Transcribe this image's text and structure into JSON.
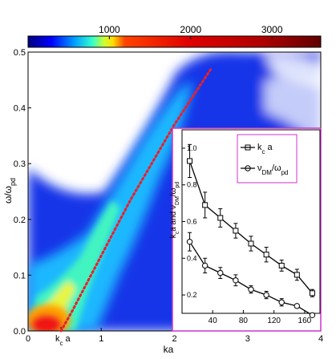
{
  "chart_data": [
    {
      "type": "heatmap",
      "xlabel": "ka",
      "ylabel": "ω/ω_pd",
      "ylabel_parts": {
        "main": "ω/ω",
        "sub": "pd"
      },
      "xlim": [
        0,
        4
      ],
      "ylim": [
        0,
        0.5
      ],
      "x_ticks": [
        "0",
        "1",
        "2",
        "3",
        "4"
      ],
      "y_ticks": [
        "0.0",
        "0.1",
        "0.2",
        "0.3",
        "0.4",
        "0.5"
      ],
      "colorbar": {
        "range": [
          0,
          3600
        ],
        "ticks": [
          "1000",
          "2000",
          "3000"
        ],
        "colormap": "jet"
      },
      "kc_marker": {
        "x": 0.45,
        "label_main": "k",
        "label_sub": "c",
        "label_tail": " a"
      },
      "dispersion_curve": {
        "color": "#e8202a",
        "style": "dotted",
        "x": [
          0.45,
          0.6,
          0.8,
          1.0,
          1.2,
          1.4,
          1.6,
          1.8,
          2.0,
          2.2,
          2.4,
          2.5
        ],
        "y": [
          0.0,
          0.035,
          0.085,
          0.135,
          0.185,
          0.235,
          0.28,
          0.325,
          0.37,
          0.41,
          0.45,
          0.47
        ]
      }
    },
    {
      "type": "line",
      "x_ticks": [
        "40",
        "80",
        "120",
        "160"
      ],
      "y_ticks": [
        "0.2",
        "0.4",
        "0.6",
        "0.8",
        "1.0"
      ],
      "ylabel": "k_c a and ν_DM/ω_pd",
      "ylabel_parts": {
        "a": "k",
        "a_sub": "c",
        "b": "a and ν",
        "b_sub": "DM",
        "c": "/ω",
        "c_sub": "pd"
      },
      "xlim": [
        0,
        180
      ],
      "ylim": [
        0.1,
        1.1
      ],
      "border_color": "#cc33cc",
      "series": [
        {
          "name": "k_c a",
          "name_parts": {
            "main": "k",
            "sub": "c",
            "tail": " a"
          },
          "marker": "square",
          "x": [
            10,
            30,
            50,
            70,
            90,
            110,
            130,
            150,
            170
          ],
          "y": [
            0.93,
            0.69,
            0.62,
            0.55,
            0.48,
            0.42,
            0.36,
            0.31,
            0.21
          ],
          "err": [
            0.09,
            0.07,
            0.05,
            0.04,
            0.04,
            0.04,
            0.03,
            0.03,
            0.02
          ]
        },
        {
          "name": "ν_DM/ω_pd",
          "name_parts": {
            "main": "ν",
            "sub": "DM",
            "mid": "/ω",
            "sub2": "pd"
          },
          "marker": "circle",
          "x": [
            10,
            30,
            50,
            70,
            90,
            110,
            130,
            150,
            170
          ],
          "y": [
            0.49,
            0.36,
            0.32,
            0.28,
            0.23,
            0.2,
            0.16,
            0.14,
            0.09
          ],
          "err": [
            0.05,
            0.04,
            0.03,
            0.03,
            0.02,
            0.02,
            0.02,
            0.01,
            0.01
          ]
        }
      ]
    }
  ]
}
